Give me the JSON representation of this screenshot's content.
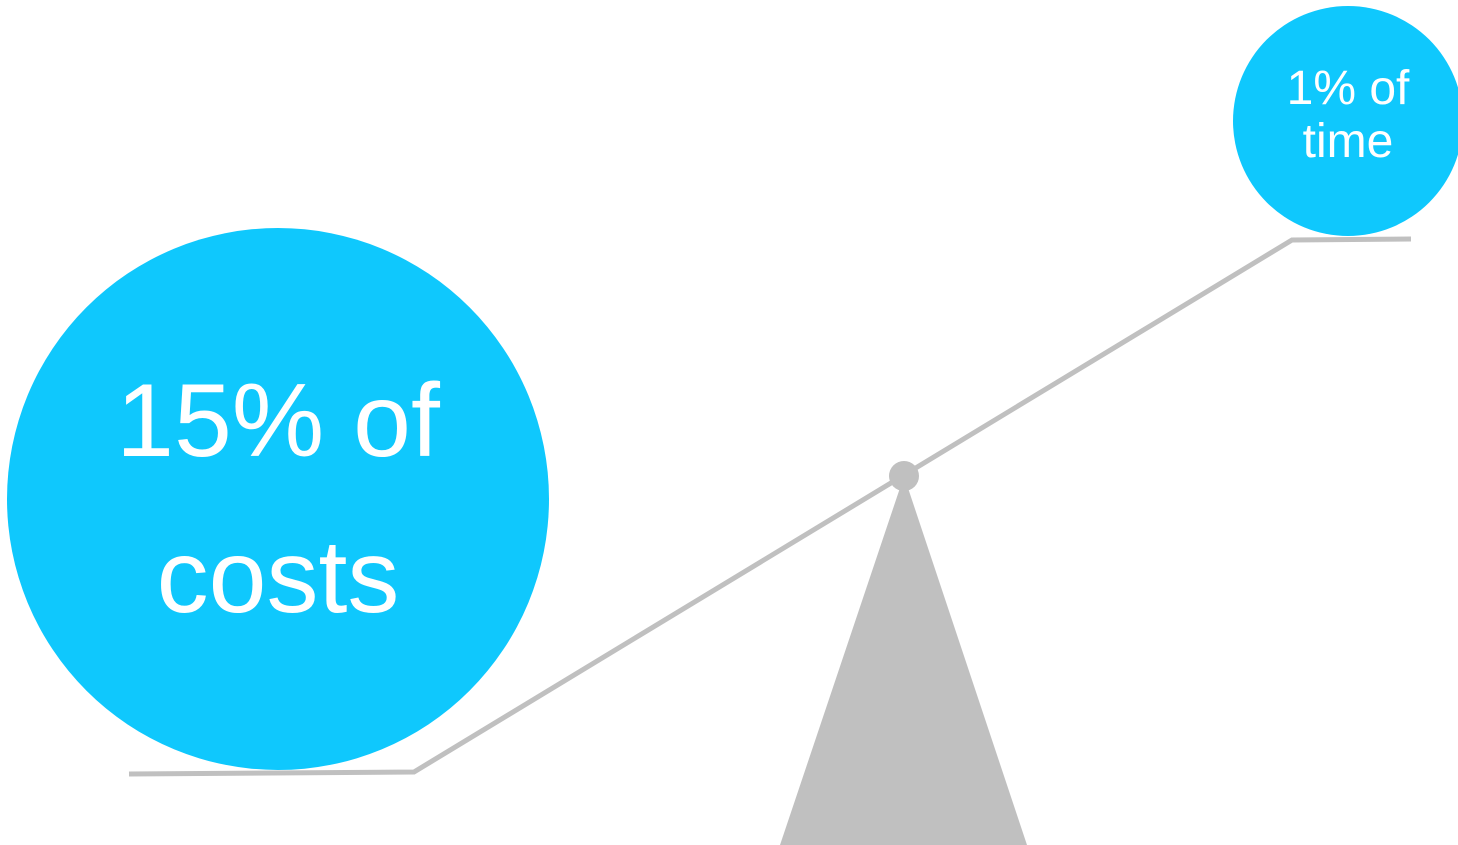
{
  "colors": {
    "bubble": "#0fc8fd",
    "beam": "#c0c0c0",
    "fulcrum": "#c0c0c0",
    "label": "#ffffff"
  },
  "left_weight": {
    "label": "15% of costs"
  },
  "right_weight": {
    "label": "1% of time"
  }
}
